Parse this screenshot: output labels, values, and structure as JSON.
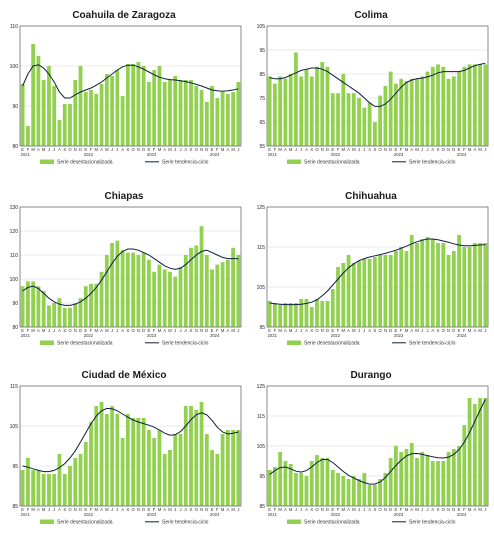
{
  "legend": {
    "bars_label": "Serie desestacionalizada",
    "trend_label": "Serie tendencia-ciclo"
  },
  "colors": {
    "bars": "#92d050",
    "trend": "#0d1f3c"
  },
  "chart_data": [
    {
      "type": "bar",
      "title": "Coahuila de Zaragoza",
      "ylim": [
        80,
        110
      ],
      "yticks": [
        80,
        90,
        100,
        110
      ],
      "month_labels": [
        "E",
        "F",
        "M",
        "A",
        "M",
        "J",
        "J",
        "A",
        "S",
        "O",
        "N",
        "D",
        "E",
        "F",
        "M",
        "A",
        "M",
        "J",
        "J",
        "A",
        "S",
        "O",
        "N",
        "D",
        "E",
        "F",
        "M",
        "A",
        "M",
        "J",
        "J",
        "A",
        "S",
        "O",
        "N",
        "D",
        "E",
        "F",
        "M",
        "A",
        "M",
        "J"
      ],
      "year_labels": [
        {
          "label": "2021",
          "index": 0
        },
        {
          "label": "2022",
          "index": 12
        },
        {
          "label": "2023",
          "index": 24
        },
        {
          "label": "2024",
          "index": 36
        }
      ],
      "series": [
        {
          "name": "Serie desestacionalizada",
          "kind": "bar",
          "values": [
            95.5,
            85,
            105.5,
            102.5,
            96.5,
            100,
            95,
            86.5,
            90.5,
            90.5,
            96.5,
            100,
            93.5,
            94,
            93,
            95.5,
            98,
            97.5,
            99,
            92.5,
            100.5,
            100.5,
            101,
            100,
            96,
            99,
            100,
            96,
            96.5,
            97.5,
            96.5,
            96.5,
            96.5,
            95,
            94,
            91,
            95,
            92,
            93.5,
            93,
            93.5,
            96
          ]
        },
        {
          "name": "Serie tendencia-ciclo",
          "kind": "line",
          "values": [
            95,
            98,
            100,
            100.3,
            99.5,
            98,
            96,
            93.5,
            92,
            92,
            92.8,
            93.5,
            94,
            94.5,
            95.2,
            96,
            97,
            98,
            99,
            99.8,
            100.2,
            100.2,
            99.8,
            99.2,
            98.5,
            97.8,
            97.2,
            96.8,
            96.6,
            96.5,
            96.3,
            96.1,
            95.8,
            95.4,
            95,
            94.5,
            94,
            93.8,
            93.7,
            93.8,
            94,
            94.3
          ]
        }
      ]
    },
    {
      "type": "bar",
      "title": "Colima",
      "ylim": [
        55,
        105
      ],
      "yticks": [
        55,
        65,
        75,
        85,
        95,
        105
      ],
      "month_labels": [
        "E",
        "F",
        "M",
        "A",
        "M",
        "J",
        "J",
        "A",
        "S",
        "O",
        "N",
        "D",
        "E",
        "F",
        "M",
        "A",
        "M",
        "J",
        "J",
        "A",
        "S",
        "O",
        "N",
        "D",
        "E",
        "F",
        "M",
        "A",
        "M",
        "J",
        "J",
        "A",
        "S",
        "O",
        "N",
        "D",
        "E",
        "F",
        "M",
        "A",
        "M",
        "J"
      ],
      "year_labels": [
        {
          "label": "2021",
          "index": 0
        },
        {
          "label": "2022",
          "index": 12
        },
        {
          "label": "2023",
          "index": 24
        },
        {
          "label": "2024",
          "index": 36
        }
      ],
      "series": [
        {
          "name": "Serie desestacionalizada",
          "kind": "bar",
          "values": [
            84,
            81,
            84,
            83,
            85,
            94,
            84,
            87,
            84,
            88,
            90,
            88,
            77,
            77,
            85,
            77,
            77,
            75,
            71,
            73,
            65,
            76,
            80,
            86,
            81,
            83,
            82,
            83,
            83,
            84,
            86,
            88,
            89,
            88,
            83,
            84,
            86,
            88,
            89,
            89,
            89,
            89
          ]
        },
        {
          "name": "Serie tendencia-ciclo",
          "kind": "line",
          "values": [
            83.5,
            83,
            83,
            83.5,
            84.5,
            85.5,
            86.5,
            87,
            87.5,
            87.5,
            87,
            86,
            84.5,
            83,
            81.5,
            80,
            78.5,
            77,
            75,
            73,
            71.5,
            71.5,
            72.5,
            74.5,
            77,
            79.5,
            81.5,
            82.5,
            83,
            83.3,
            83.8,
            84.5,
            85.5,
            86,
            86,
            86,
            86,
            86.5,
            87.5,
            88.5,
            89,
            89.5
          ]
        }
      ]
    },
    {
      "type": "bar",
      "title": "Chiapas",
      "ylim": [
        80,
        130
      ],
      "yticks": [
        80,
        90,
        100,
        110,
        120,
        130
      ],
      "month_labels": [
        "E",
        "F",
        "M",
        "A",
        "M",
        "J",
        "J",
        "A",
        "S",
        "O",
        "N",
        "D",
        "E",
        "F",
        "M",
        "A",
        "M",
        "J",
        "J",
        "A",
        "S",
        "O",
        "N",
        "D",
        "E",
        "F",
        "M",
        "A",
        "M",
        "J",
        "J",
        "A",
        "S",
        "O",
        "N",
        "D",
        "E",
        "F",
        "M",
        "A",
        "M",
        "J"
      ],
      "year_labels": [
        {
          "label": "2021",
          "index": 0
        },
        {
          "label": "2022",
          "index": 12
        },
        {
          "label": "2023",
          "index": 24
        },
        {
          "label": "2024",
          "index": 36
        }
      ],
      "series": [
        {
          "name": "Serie desestacionalizada",
          "kind": "bar",
          "values": [
            97,
            99,
            99,
            97,
            95,
            89,
            90,
            92,
            88,
            88,
            90,
            92,
            97,
            98,
            98,
            103,
            110,
            115,
            116,
            112,
            111,
            111,
            110,
            111,
            108,
            103,
            106,
            104,
            103,
            101,
            105,
            110,
            113,
            114,
            122,
            110,
            104,
            106,
            107,
            108,
            113,
            110
          ]
        },
        {
          "name": "Serie tendencia-ciclo",
          "kind": "line",
          "values": [
            95,
            96.5,
            97,
            96,
            94,
            92,
            90.5,
            89.5,
            89,
            89,
            89.5,
            90.5,
            92,
            94,
            96.5,
            99.5,
            103,
            106.5,
            109.5,
            111.5,
            112.5,
            112.5,
            112,
            111,
            110,
            108.5,
            107,
            105.5,
            104.5,
            104,
            104.5,
            106,
            108,
            110,
            111.5,
            112,
            111,
            110,
            109,
            108.5,
            108.5,
            108.5
          ]
        }
      ]
    },
    {
      "type": "bar",
      "title": "Chihuahua",
      "ylim": [
        95,
        125
      ],
      "yticks": [
        95,
        105,
        115,
        125
      ],
      "month_labels": [
        "E",
        "F",
        "M",
        "A",
        "M",
        "J",
        "J",
        "A",
        "S",
        "O",
        "N",
        "D",
        "E",
        "F",
        "M",
        "A",
        "M",
        "J",
        "J",
        "A",
        "S",
        "O",
        "N",
        "D",
        "E",
        "F",
        "M",
        "A",
        "M",
        "J",
        "J",
        "A",
        "S",
        "O",
        "N",
        "D",
        "E",
        "F",
        "M",
        "A",
        "M",
        "J"
      ],
      "year_labels": [
        {
          "label": "2021",
          "index": 0
        },
        {
          "label": "2022",
          "index": 12
        },
        {
          "label": "2023",
          "index": 24
        },
        {
          "label": "2024",
          "index": 36
        }
      ],
      "series": [
        {
          "name": "Serie desestacionalizada",
          "kind": "bar",
          "values": [
            101.5,
            101,
            100.5,
            101,
            101,
            101,
            102,
            102,
            100,
            102,
            101.5,
            101.5,
            104.5,
            110,
            111,
            113,
            111,
            111.5,
            112,
            112,
            112.5,
            113,
            113,
            113,
            114,
            115,
            114,
            118,
            116,
            117,
            117.5,
            117,
            116,
            116,
            113,
            114,
            118,
            115,
            115,
            116,
            116,
            116
          ]
        },
        {
          "name": "Serie tendencia-ciclo",
          "kind": "line",
          "values": [
            101,
            100.8,
            100.7,
            100.6,
            100.6,
            100.6,
            100.7,
            100.9,
            101.2,
            101.8,
            102.8,
            104,
            105.5,
            107,
            108.5,
            109.8,
            110.8,
            111.6,
            112.1,
            112.5,
            112.8,
            113.1,
            113.4,
            113.8,
            114.2,
            114.7,
            115.2,
            115.8,
            116.3,
            116.7,
            117,
            117,
            116.8,
            116.5,
            116.2,
            115.8,
            115.5,
            115.3,
            115.3,
            115.4,
            115.5,
            115.6
          ]
        }
      ]
    },
    {
      "type": "bar",
      "title": "Ciudad de México",
      "ylim": [
        85,
        115
      ],
      "yticks": [
        85,
        95,
        105,
        115
      ],
      "month_labels": [
        "E",
        "F",
        "M",
        "A",
        "M",
        "J",
        "J",
        "A",
        "S",
        "O",
        "N",
        "D",
        "E",
        "F",
        "M",
        "A",
        "M",
        "J",
        "J",
        "A",
        "S",
        "O",
        "N",
        "D",
        "E",
        "F",
        "M",
        "A",
        "M",
        "J",
        "J",
        "A",
        "S",
        "O",
        "N",
        "D",
        "E",
        "F",
        "M",
        "A",
        "M",
        "J"
      ],
      "year_labels": [
        {
          "label": "2021",
          "index": 0
        },
        {
          "label": "2022",
          "index": 12
        },
        {
          "label": "2023",
          "index": 24
        },
        {
          "label": "2024",
          "index": 36
        }
      ],
      "series": [
        {
          "name": "Serie desestacionalizada",
          "kind": "bar",
          "values": [
            94,
            97,
            94,
            94,
            93,
            93,
            93,
            98,
            93,
            95,
            97,
            98,
            101,
            106,
            110,
            111,
            108,
            110,
            108,
            102,
            108,
            107,
            107,
            107,
            104,
            102,
            104,
            98,
            99,
            103,
            103,
            110,
            110,
            109,
            111,
            103,
            99,
            98,
            103,
            104,
            104,
            104
          ]
        },
        {
          "name": "Serie tendencia-ciclo",
          "kind": "line",
          "values": [
            95,
            94.7,
            94.3,
            93.9,
            93.6,
            93.6,
            93.9,
            94.6,
            95.6,
            97,
            98.8,
            101,
            103.3,
            105.6,
            107.5,
            108.8,
            109.4,
            109.3,
            108.8,
            108,
            107.2,
            106.5,
            106,
            105.6,
            105.2,
            104.7,
            104,
            103.2,
            102.7,
            102.8,
            103.6,
            105,
            106.6,
            107.8,
            108.3,
            107.8,
            106.4,
            104.7,
            103.5,
            103,
            103.2,
            103.5
          ]
        }
      ]
    },
    {
      "type": "bar",
      "title": "Durango",
      "ylim": [
        85,
        125
      ],
      "yticks": [
        85,
        95,
        105,
        115,
        125
      ],
      "month_labels": [
        "E",
        "F",
        "M",
        "A",
        "M",
        "J",
        "J",
        "A",
        "S",
        "O",
        "N",
        "D",
        "E",
        "F",
        "M",
        "A",
        "M",
        "J",
        "J",
        "A",
        "S",
        "O",
        "N",
        "D",
        "E",
        "F",
        "M",
        "A",
        "M",
        "J",
        "J",
        "A",
        "S",
        "O",
        "N",
        "D",
        "E",
        "F",
        "M",
        "A",
        "M",
        "J"
      ],
      "year_labels": [
        {
          "label": "2021",
          "index": 0
        },
        {
          "label": "2022",
          "index": 12
        },
        {
          "label": "2023",
          "index": 24
        },
        {
          "label": "2024",
          "index": 36
        }
      ],
      "series": [
        {
          "name": "Serie desestacionalizada",
          "kind": "bar",
          "values": [
            97,
            98,
            103,
            100,
            99,
            96,
            96,
            95,
            100,
            102,
            101,
            101,
            97,
            96,
            95,
            94,
            95,
            94,
            96,
            92,
            92,
            94,
            96,
            101,
            105,
            103,
            104,
            106,
            101,
            103,
            102,
            100,
            100,
            100,
            103,
            104,
            105,
            112,
            121,
            119,
            121,
            121
          ]
        },
        {
          "name": "Serie tendencia-ciclo",
          "kind": "line",
          "values": [
            95.5,
            96.8,
            97.8,
            98,
            97.4,
            96.6,
            96.3,
            96.8,
            98,
            99.5,
            100.5,
            100.5,
            99.5,
            98,
            96.5,
            95.2,
            94.3,
            93.5,
            92.8,
            92.3,
            92.3,
            93,
            94.5,
            96.5,
            98.5,
            100.3,
            101.7,
            102.4,
            102.5,
            102.2,
            101.8,
            101.4,
            101.1,
            101,
            101.3,
            102.2,
            103.8,
            106.3,
            109.5,
            113.2,
            117,
            120.5
          ]
        }
      ]
    }
  ]
}
